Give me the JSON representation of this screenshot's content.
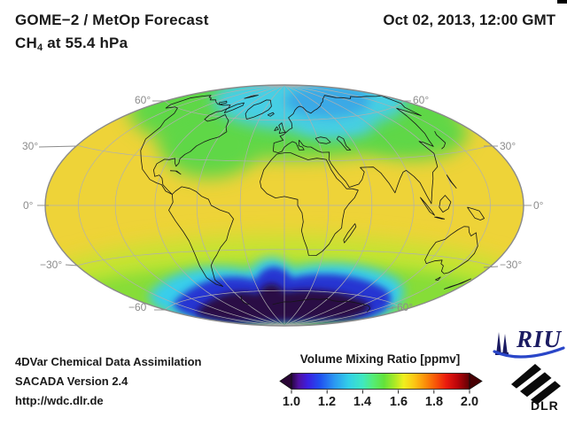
{
  "header": {
    "title_line1": "GOME−2 / MetOp Forecast",
    "subtitle_prefix": "CH",
    "subtitle_sub": "4",
    "subtitle_suffix": " at 55.4 hPa",
    "datetime": "Oct 02, 2013, 12:00 GMT"
  },
  "map": {
    "lat_labels": [
      "60°",
      "60°",
      "30°",
      "30°",
      "0°",
      "0°",
      "−30°",
      "−30°",
      "−60",
      "−60°"
    ],
    "colors": {
      "base": "#eed338",
      "north_green": "#5fd746",
      "arctic_cyan": "#46cfe4",
      "arctic_blue": "#3aa9e6",
      "south_yellowgreen": "#c2e431",
      "south_green": "#86dd38",
      "vortex_cyan": "#38cdec",
      "vortex_blue": "#2535d2",
      "vortex_core": "#2c0845",
      "grid": "#b0b0b0",
      "coast": "#161616",
      "outline": "#8a8a8a",
      "label": "#8c8c8c"
    }
  },
  "colorbar": {
    "title": "Volume Mixing Ratio [ppmv]",
    "ticks": [
      "1.0",
      "1.2",
      "1.4",
      "1.6",
      "1.8",
      "2.0"
    ],
    "left_arrow_color": "#2a0636",
    "right_arrow_color": "#470003",
    "gradient_stops": [
      {
        "p": 0.0,
        "c": "#26063f"
      },
      {
        "p": 0.04,
        "c": "#50109e"
      },
      {
        "p": 0.09,
        "c": "#3c1ee0"
      },
      {
        "p": 0.16,
        "c": "#2050f0"
      },
      {
        "p": 0.24,
        "c": "#2b97f2"
      },
      {
        "p": 0.32,
        "c": "#32cfe8"
      },
      {
        "p": 0.4,
        "c": "#3fe8c0"
      },
      {
        "p": 0.46,
        "c": "#55ec74"
      },
      {
        "p": 0.52,
        "c": "#63e23a"
      },
      {
        "p": 0.58,
        "c": "#abe926"
      },
      {
        "p": 0.63,
        "c": "#f0ef1e"
      },
      {
        "p": 0.69,
        "c": "#fcc614"
      },
      {
        "p": 0.75,
        "c": "#fb8f0a"
      },
      {
        "p": 0.81,
        "c": "#f85508"
      },
      {
        "p": 0.87,
        "c": "#ea1a0e"
      },
      {
        "p": 0.93,
        "c": "#bc050a"
      },
      {
        "p": 1.0,
        "c": "#5e0105"
      }
    ]
  },
  "footer": {
    "line1": "4DVar Chemical Data Assimilation",
    "line2": "SACADA Version 2.4",
    "line3": "http://wdc.dlr.de"
  },
  "logos": {
    "riu_text": "RIU",
    "dlr_text": "DLR"
  },
  "chart_data": {
    "type": "heatmap",
    "title": "GOME−2 / MetOp Forecast — CH4 at 55.4 hPa",
    "timestamp": "Oct 02, 2013, 12:00 GMT",
    "projection": "Hammer ellipse, 0° centered, graticule every 30°",
    "colorbar": {
      "label": "Volume Mixing Ratio [ppmv]",
      "range": [
        1.0,
        2.0
      ],
      "ticks": [
        1.0,
        1.2,
        1.4,
        1.6,
        1.8,
        2.0
      ]
    },
    "features": [
      {
        "region": "tropics and mid-latitudes",
        "approx_value_ppmv": 1.6
      },
      {
        "region": "northern high latitudes 55–75N",
        "approx_value_ppmv": 1.5
      },
      {
        "region": "Arctic cap 75–90N",
        "approx_value_ppmv": 1.35
      },
      {
        "region": "southern mid-latitudes 30–60S",
        "approx_value_ppmv": 1.5
      },
      {
        "region": "Antarctic vortex ring",
        "approx_value_ppmv": 1.2
      },
      {
        "region": "Antarctic vortex core (star-shaped)",
        "approx_value_ppmv": 1.0
      }
    ]
  }
}
